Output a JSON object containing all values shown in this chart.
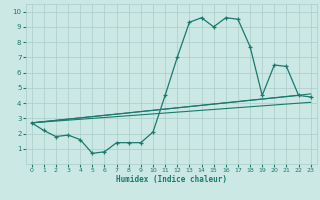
{
  "xlabel": "Humidex (Indice chaleur)",
  "bg_color": "#cce8e4",
  "grid_color": "#aaccca",
  "line_color": "#1a7a6e",
  "xlim": [
    -0.5,
    23.5
  ],
  "ylim": [
    0,
    10.5
  ],
  "xticks": [
    0,
    1,
    2,
    3,
    4,
    5,
    6,
    7,
    8,
    9,
    10,
    11,
    12,
    13,
    14,
    15,
    16,
    17,
    18,
    19,
    20,
    21,
    22,
    23
  ],
  "yticks": [
    1,
    2,
    3,
    4,
    5,
    6,
    7,
    8,
    9,
    10
  ],
  "curve1_x": [
    0,
    1,
    2,
    3,
    4,
    5,
    6,
    7,
    8,
    9,
    10,
    11,
    12,
    13,
    14,
    15,
    16,
    17,
    18,
    19,
    20,
    21,
    22,
    23
  ],
  "curve1_y": [
    2.7,
    2.2,
    1.8,
    1.9,
    1.6,
    0.7,
    0.8,
    1.4,
    1.4,
    1.4,
    2.1,
    4.5,
    7.0,
    9.3,
    9.6,
    9.0,
    9.6,
    9.5,
    7.7,
    4.5,
    6.5,
    6.4,
    4.5,
    4.4
  ],
  "line1_x": [
    0,
    23
  ],
  "line1_y": [
    2.7,
    4.05
  ],
  "line2_x": [
    0,
    22
  ],
  "line2_y": [
    2.7,
    4.5
  ],
  "line3_x": [
    0,
    23
  ],
  "line3_y": [
    2.7,
    4.6
  ]
}
